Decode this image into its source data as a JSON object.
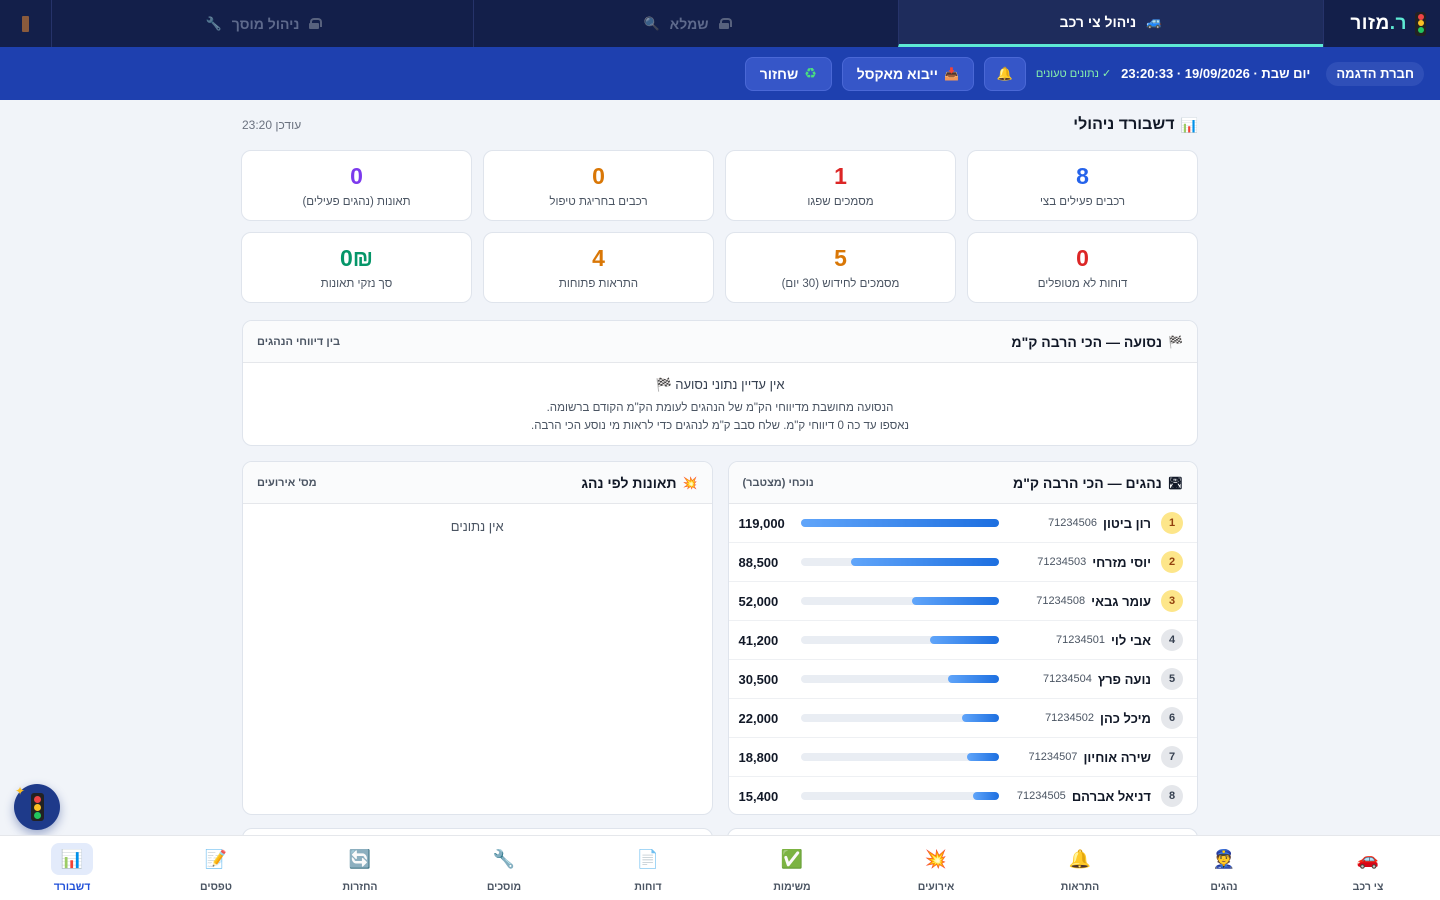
{
  "brand": {
    "prefix": "ר.",
    "name": "מזור"
  },
  "topnav": {
    "tabs": [
      {
        "label": "ניהול צי רכב",
        "icon": "car-icon",
        "active": true
      },
      {
        "label": "שמלא",
        "icon": "search-icon",
        "locked": true
      },
      {
        "label": "ניהול מוסך",
        "icon": "wrench-icon",
        "locked": true
      }
    ]
  },
  "subbar": {
    "company": "חברת הדגמה",
    "datetime": "יום שבת · 19/09/2026 · 23:20:33",
    "loaded": "✓ נתונים טעונים",
    "import_label": "ייבוא מאקסל",
    "restore_label": "שחזור"
  },
  "dashboard": {
    "title": "דשבורד ניהולי",
    "updated": "עודכן 23:20"
  },
  "stats": [
    {
      "value": "8",
      "label": "רכבים פעילים בצי",
      "color": "#2563eb"
    },
    {
      "value": "1",
      "label": "מסמכים שפגו",
      "color": "#dc2626"
    },
    {
      "value": "0",
      "label": "רכבים בחריגת טיפול",
      "color": "#d97706"
    },
    {
      "value": "0",
      "label": "תאונות (נהגים פעילים)",
      "color": "#7c3aed"
    },
    {
      "value": "0",
      "label": "דוחות לא מטופלים",
      "color": "#dc2626"
    },
    {
      "value": "5",
      "label": "מסמכים לחידוש (30 יום)",
      "color": "#d97706"
    },
    {
      "value": "4",
      "label": "התראות פתוחות",
      "color": "#d97706"
    },
    {
      "value": "0₪",
      "label": "סך נזקי תאונות",
      "color": "#059669"
    }
  ],
  "trip": {
    "title": "נסועה — הכי הרבה ק\"מ",
    "subtitle": "בין דיווחי הנהגים",
    "empty_title": "אין עדיין נתוני נסועה 🏁",
    "desc1": "הנסועה מחושבת מדיווחי הק\"מ של הנהגים לעומת הק\"מ הקודם ברשומה.",
    "desc2": "נאספו עד כה 0 דיווחי ק\"מ. שלח סבב ק\"מ לנהגים כדי לראות מי נוסע הכי הרבה."
  },
  "drivers_km": {
    "title": "נהגים — הכי הרבה ק\"מ",
    "subtitle": "נוכחי (מצטבר)",
    "rows": [
      {
        "rank": "1",
        "name": "רון ביטון",
        "id": "71234506",
        "km": "119,000",
        "pct": 1.0
      },
      {
        "rank": "2",
        "name": "יוסי מזרחי",
        "id": "71234503",
        "km": "88,500",
        "pct": 0.744
      },
      {
        "rank": "3",
        "name": "עומר גבאי",
        "id": "71234508",
        "km": "52,000",
        "pct": 0.437
      },
      {
        "rank": "4",
        "name": "אבי לוי",
        "id": "71234501",
        "km": "41,200",
        "pct": 0.346
      },
      {
        "rank": "5",
        "name": "נועה פרץ",
        "id": "71234504",
        "km": "30,500",
        "pct": 0.256
      },
      {
        "rank": "6",
        "name": "מיכל כהן",
        "id": "71234502",
        "km": "22,000",
        "pct": 0.185
      },
      {
        "rank": "7",
        "name": "שירה אוחיון",
        "id": "71234507",
        "km": "18,800",
        "pct": 0.158
      },
      {
        "rank": "8",
        "name": "דניאל אברהם",
        "id": "71234505",
        "km": "15,400",
        "pct": 0.129
      }
    ]
  },
  "accidents": {
    "title": "תאונות לפי נהג",
    "subtitle": "מס' אירועים",
    "empty": "אין נתונים"
  },
  "bottomnav": [
    {
      "label": "צי רכב",
      "icon": "car-icon",
      "glyph": "🚗"
    },
    {
      "label": "נהגים",
      "icon": "driver-icon",
      "glyph": "👮"
    },
    {
      "label": "התראות",
      "icon": "bell-icon",
      "glyph": "🔔"
    },
    {
      "label": "אירועים",
      "icon": "collision-icon",
      "glyph": "💥"
    },
    {
      "label": "משימות",
      "icon": "check-icon",
      "glyph": "✅"
    },
    {
      "label": "דוחות",
      "icon": "document-icon",
      "glyph": "📄"
    },
    {
      "label": "מוסכים",
      "icon": "wrench-icon",
      "glyph": "🔧"
    },
    {
      "label": "החזרות",
      "icon": "refresh-icon",
      "glyph": "🔄"
    },
    {
      "label": "טפסים",
      "icon": "memo-icon",
      "glyph": "📝"
    },
    {
      "label": "דשבורד",
      "icon": "chart-icon",
      "glyph": "📊",
      "active": true
    }
  ]
}
